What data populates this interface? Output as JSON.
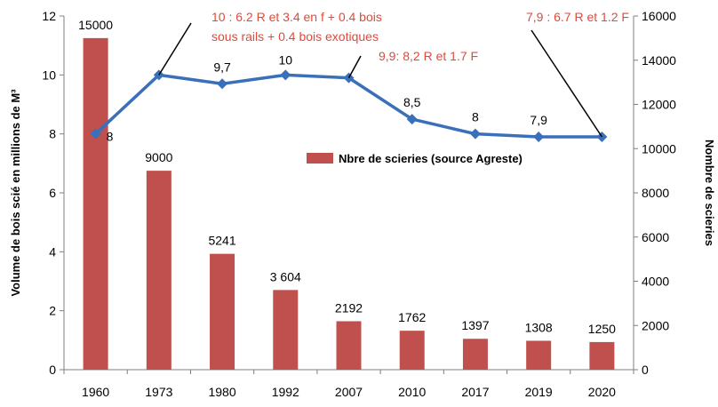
{
  "chart_data": {
    "type": "bar",
    "categories": [
      "1960",
      "1973",
      "1980",
      "1992",
      "2007",
      "2010",
      "2017",
      "2019",
      "2020"
    ],
    "series": [
      {
        "name": "Nbre de scieries (source Agreste)",
        "type": "bar",
        "axis": "right",
        "values": [
          15000,
          9000,
          5241,
          3604,
          2192,
          1762,
          1397,
          1308,
          1250
        ],
        "labels": [
          "15000",
          "9000",
          "5241",
          "3 604",
          "2192",
          "1762",
          "1397",
          "1308",
          "1250"
        ],
        "color": "#c0504d"
      },
      {
        "type": "line",
        "axis": "left",
        "values": [
          8,
          10,
          9.7,
          10,
          9.9,
          8.5,
          8,
          7.9,
          7.9
        ],
        "labels": [
          "8",
          "",
          "9,7",
          "10",
          "",
          "8,5",
          "8",
          "7,9",
          ""
        ],
        "color": "#3a6fba"
      }
    ],
    "ylabel": "Volume de bois scié en millions de M³",
    "y2label": "Nombre de scieries",
    "ylim": [
      0,
      12
    ],
    "y2lim": [
      0,
      16000
    ],
    "yticks": [
      "0",
      "2",
      "4",
      "6",
      "8",
      "10",
      "12"
    ],
    "y2ticks": [
      "0",
      "2000",
      "4000",
      "6000",
      "8000",
      "10000",
      "12000",
      "14000",
      "16000"
    ],
    "legend_position": "right-middle",
    "grid": false,
    "annotations": [
      {
        "lines": [
          "10 : 6.2 R et 3.4 en f + 0.4 bois",
          "sous rails  + 0.4 bois exotiques"
        ],
        "color": "#e04a3a",
        "points_to": "1973"
      },
      {
        "lines": [
          "9,9: 8,2 R et 1.7 F"
        ],
        "color": "#e04a3a",
        "points_to": "2007"
      },
      {
        "lines": [
          "7,9 : 6.7 R et 1.2 F"
        ],
        "color": "#e04a3a",
        "points_to": "2020"
      }
    ]
  }
}
